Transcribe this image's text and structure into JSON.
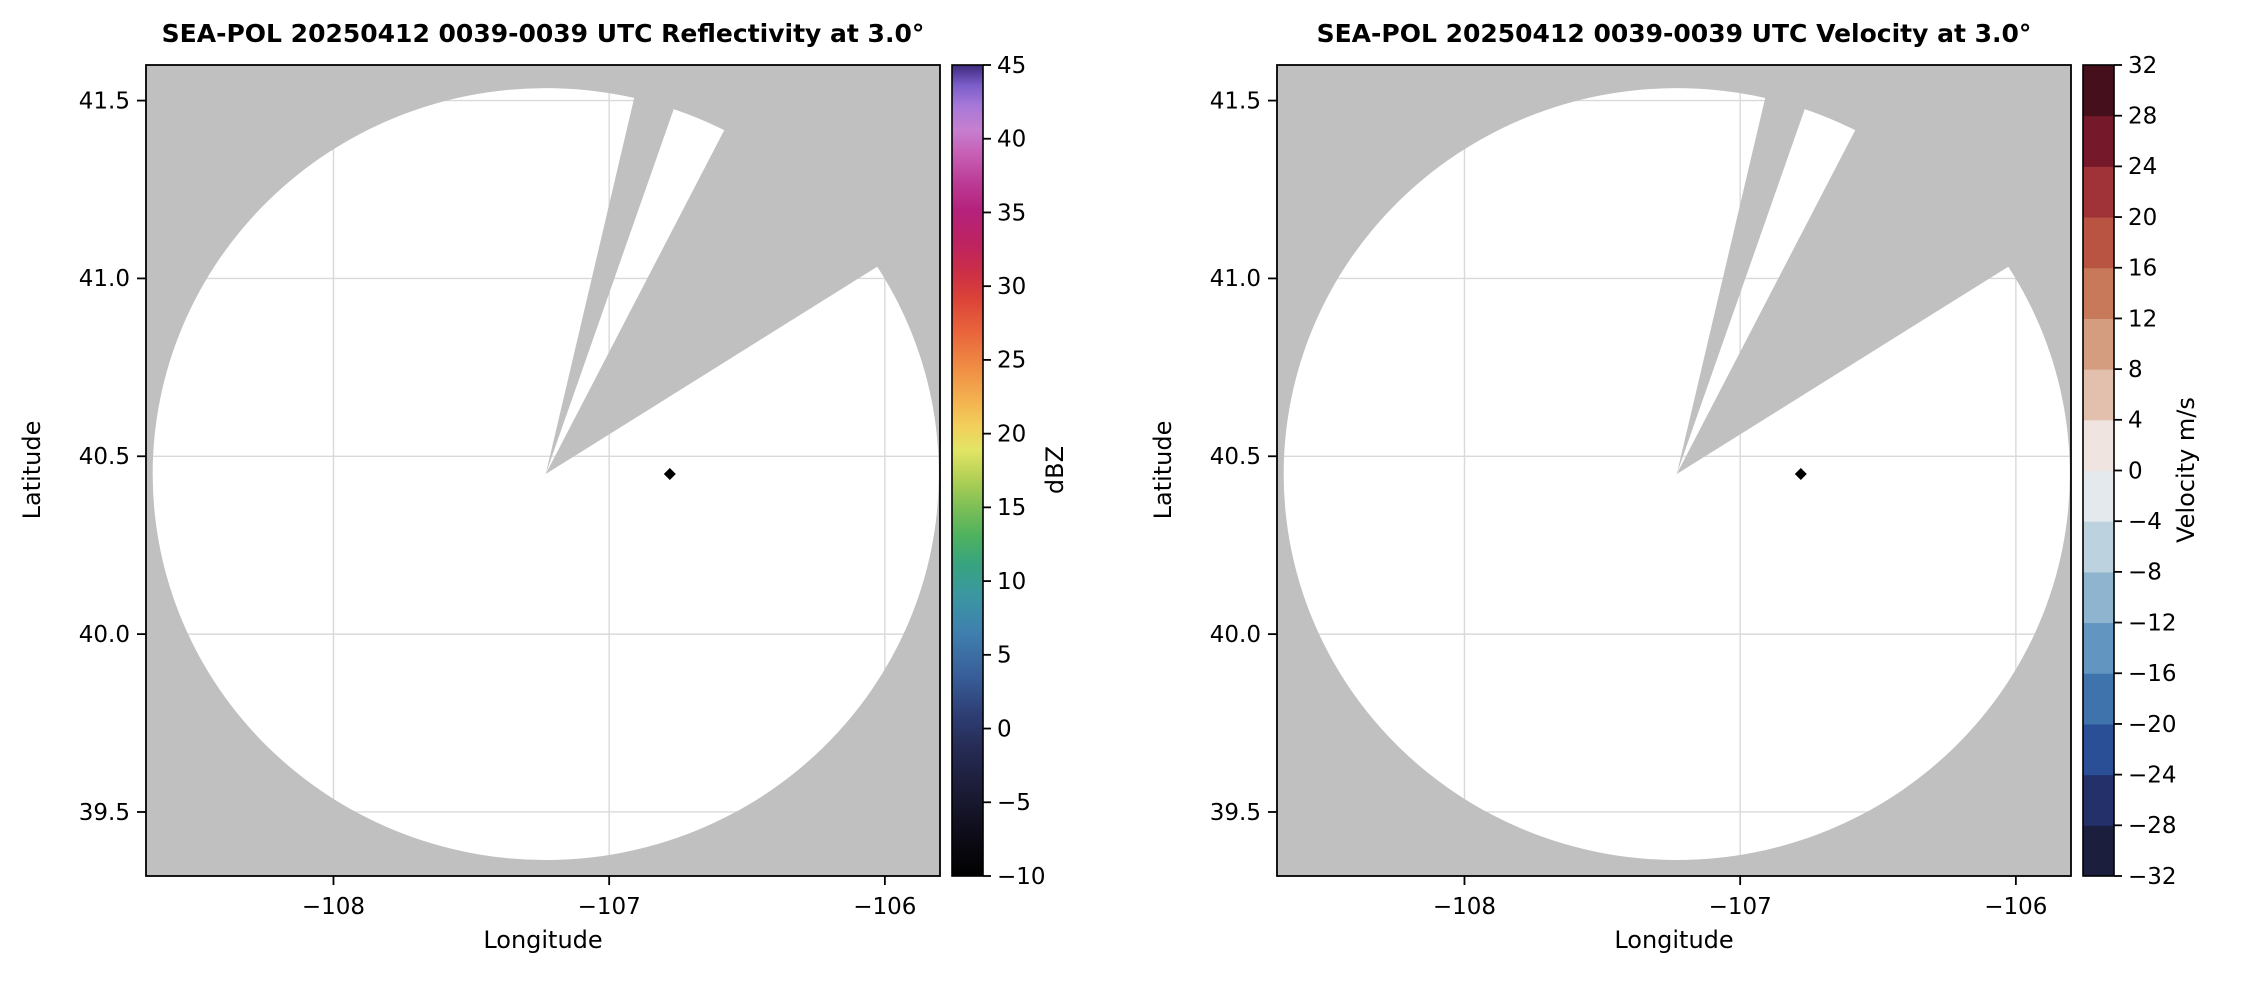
{
  "figure": {
    "background": "#ffffff"
  },
  "chart_data": [
    {
      "type": "heatmap",
      "subtype": "radar-ppi-map",
      "title": "SEA-POL 20250412 0039-0039 UTC Reflectivity at 3.0°",
      "xlabel": "Longitude",
      "ylabel": "Latitude",
      "xlim": [
        -108.68,
        -105.8
      ],
      "ylim": [
        39.32,
        41.6
      ],
      "xticks": [
        -108,
        -107,
        -106
      ],
      "xtick_labels": [
        "−108",
        "−107",
        "−106"
      ],
      "yticks": [
        39.5,
        40.0,
        40.5,
        41.0,
        41.5
      ],
      "ytick_labels": [
        "39.5",
        "40.0",
        "40.5",
        "41.0",
        "41.5"
      ],
      "grid": true,
      "grid_color": "#d9d9d9",
      "background_color": "#c0c0c0",
      "scan_area": {
        "center_lon": -107.23,
        "center_lat": 40.45,
        "radius_lat_deg": 1.085,
        "fill": "#ffffff"
      },
      "missing_sectors_azimuth_deg": [
        [
          13,
          19
        ],
        [
          27,
          57.5
        ]
      ],
      "marker": {
        "lon": -106.78,
        "lat": 40.45,
        "shape": "diamond",
        "color": "#000000"
      },
      "colorbar": {
        "label": "dBZ",
        "min": -10,
        "max": 45,
        "style": "continuous",
        "ticks": [
          -10,
          -5,
          0,
          5,
          10,
          15,
          20,
          25,
          30,
          35,
          40,
          45
        ],
        "tick_labels": [
          "−10",
          "−5",
          "0",
          "5",
          "10",
          "15",
          "20",
          "25",
          "30",
          "35",
          "40",
          "45"
        ],
        "stops": [
          [
            0.0,
            "#010101"
          ],
          [
            0.05,
            "#0d0c18"
          ],
          [
            0.1,
            "#1a1a33"
          ],
          [
            0.16,
            "#262c56"
          ],
          [
            0.2,
            "#2e3f75"
          ],
          [
            0.25,
            "#39609c"
          ],
          [
            0.3,
            "#3f7fae"
          ],
          [
            0.345,
            "#3b96a2"
          ],
          [
            0.385,
            "#38a47e"
          ],
          [
            0.42,
            "#4fb25f"
          ],
          [
            0.455,
            "#7dbf56"
          ],
          [
            0.49,
            "#b2d055"
          ],
          [
            0.525,
            "#e2e465"
          ],
          [
            0.555,
            "#f2cf5a"
          ],
          [
            0.59,
            "#f3ae4e"
          ],
          [
            0.63,
            "#ef8a43"
          ],
          [
            0.67,
            "#e9653c"
          ],
          [
            0.71,
            "#dc4438"
          ],
          [
            0.745,
            "#cb2e47"
          ],
          [
            0.78,
            "#bd2360"
          ],
          [
            0.82,
            "#b5217c"
          ],
          [
            0.855,
            "#bb3b96"
          ],
          [
            0.89,
            "#c75fb5"
          ],
          [
            0.92,
            "#c77fd0"
          ],
          [
            0.95,
            "#a678d8"
          ],
          [
            0.975,
            "#7b5ec9"
          ],
          [
            1.0,
            "#3e2b7e"
          ]
        ]
      }
    },
    {
      "type": "heatmap",
      "subtype": "radar-ppi-map",
      "title": "SEA-POL 20250412 0039-0039 UTC Velocity at 3.0°",
      "xlabel": "Longitude",
      "ylabel": "Latitude",
      "xlim": [
        -108.68,
        -105.8
      ],
      "ylim": [
        39.32,
        41.6
      ],
      "xticks": [
        -108,
        -107,
        -106
      ],
      "xtick_labels": [
        "−108",
        "−107",
        "−106"
      ],
      "yticks": [
        39.5,
        40.0,
        40.5,
        41.0,
        41.5
      ],
      "ytick_labels": [
        "39.5",
        "40.0",
        "40.5",
        "41.0",
        "41.5"
      ],
      "grid": true,
      "grid_color": "#d9d9d9",
      "background_color": "#c0c0c0",
      "scan_area": {
        "center_lon": -107.23,
        "center_lat": 40.45,
        "radius_lat_deg": 1.085,
        "fill": "#ffffff"
      },
      "missing_sectors_azimuth_deg": [
        [
          13,
          19
        ],
        [
          27,
          57.5
        ]
      ],
      "marker": {
        "lon": -106.78,
        "lat": 40.45,
        "shape": "diamond",
        "color": "#000000"
      },
      "colorbar": {
        "label": "Velocity m/s",
        "min": -32,
        "max": 32,
        "style": "discrete",
        "ticks": [
          -32,
          -28,
          -24,
          -20,
          -16,
          -12,
          -8,
          -4,
          0,
          4,
          8,
          12,
          16,
          20,
          24,
          28,
          32
        ],
        "tick_labels": [
          "−32",
          "−28",
          "−24",
          "−20",
          "−16",
          "−12",
          "−8",
          "−4",
          "0",
          "4",
          "8",
          "12",
          "16",
          "20",
          "24",
          "28",
          "32"
        ],
        "segment_colors": [
          "#1c1e3e",
          "#24306a",
          "#2b4f97",
          "#3e73ac",
          "#6295c0",
          "#8fb4cf",
          "#bcd2de",
          "#e3e9ec",
          "#efe4df",
          "#e2c0ad",
          "#d49d80",
          "#c7795a",
          "#b85441",
          "#a03338",
          "#75192a",
          "#460f1c"
        ]
      }
    }
  ]
}
